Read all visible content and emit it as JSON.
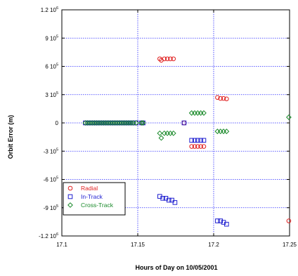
{
  "chart_data": {
    "type": "scatter",
    "xlabel": "Hours of Day on 10/05/2001",
    "ylabel": "Orbit Error (m)",
    "xlim": [
      17.1,
      17.25
    ],
    "ylim": [
      -1200000,
      1200000
    ],
    "x_ticks": [
      "17.1",
      "17.15",
      "17.2",
      "17.25"
    ],
    "y_ticks": [
      {
        "mantissa": "1.2",
        "exp": "6"
      },
      {
        "mantissa": "9",
        "exp": "5"
      },
      {
        "mantissa": "6",
        "exp": "5"
      },
      {
        "mantissa": "3",
        "exp": "5"
      },
      {
        "mantissa": "0",
        "exp": ""
      },
      {
        "mantissa": "-3",
        "exp": "5"
      },
      {
        "mantissa": "-6",
        "exp": "5"
      },
      {
        "mantissa": "-9",
        "exp": "5"
      },
      {
        "mantissa": "-1.2",
        "exp": "6"
      }
    ],
    "y_tick_values": [
      1200000,
      900000,
      600000,
      300000,
      0,
      -300000,
      -600000,
      -900000,
      -1200000
    ],
    "grid": true,
    "legend_position": "bottom-left",
    "series": [
      {
        "name": "Radial",
        "color": "#e02020",
        "marker": "circle",
        "x": [
          17.1155,
          17.117,
          17.1185,
          17.12,
          17.1215,
          17.123,
          17.1245,
          17.126,
          17.1275,
          17.129,
          17.1305,
          17.132,
          17.1335,
          17.135,
          17.1365,
          17.138,
          17.1395,
          17.141,
          17.1425,
          17.144,
          17.1455,
          17.147,
          17.149,
          17.1525,
          17.1535,
          17.1645,
          17.1655,
          17.1675,
          17.1695,
          17.1715,
          17.1735,
          17.1805,
          17.1855,
          17.1875,
          17.1895,
          17.1915,
          17.1935,
          17.2025,
          17.2045,
          17.2065,
          17.2085,
          17.2495
        ],
        "y": [
          0,
          0,
          0,
          0,
          0,
          0,
          0,
          0,
          0,
          0,
          0,
          0,
          0,
          0,
          0,
          0,
          0,
          0,
          0,
          0,
          0,
          0,
          0,
          0,
          0,
          680000,
          665000,
          680000,
          680000,
          680000,
          680000,
          0,
          -250000,
          -250000,
          -250000,
          -250000,
          -250000,
          270000,
          260000,
          260000,
          255000,
          -1040000
        ]
      },
      {
        "name": "In-Track",
        "color": "#1f1fd0",
        "marker": "square",
        "x": [
          17.1155,
          17.117,
          17.1185,
          17.12,
          17.1215,
          17.123,
          17.1245,
          17.126,
          17.1275,
          17.129,
          17.1305,
          17.132,
          17.1335,
          17.135,
          17.1365,
          17.138,
          17.1395,
          17.141,
          17.1425,
          17.144,
          17.1455,
          17.147,
          17.149,
          17.1525,
          17.1535,
          17.1645,
          17.1665,
          17.1685,
          17.1705,
          17.1725,
          17.1745,
          17.1805,
          17.1855,
          17.1875,
          17.1895,
          17.1915,
          17.1935,
          17.2025,
          17.2045,
          17.2065,
          17.2085
        ],
        "y": [
          0,
          0,
          0,
          0,
          0,
          0,
          0,
          0,
          0,
          0,
          0,
          0,
          0,
          0,
          0,
          0,
          0,
          0,
          0,
          0,
          0,
          0,
          0,
          0,
          0,
          -780000,
          -800000,
          -800000,
          -820000,
          -820000,
          -845000,
          0,
          -185000,
          -185000,
          -185000,
          -185000,
          -185000,
          -1040000,
          -1040000,
          -1055000,
          -1075000
        ]
      },
      {
        "name": "Cross-Track",
        "color": "#1a8a2a",
        "marker": "diamond",
        "x": [
          17.1155,
          17.117,
          17.1185,
          17.12,
          17.1215,
          17.123,
          17.1245,
          17.126,
          17.1275,
          17.129,
          17.1305,
          17.132,
          17.1335,
          17.135,
          17.1365,
          17.138,
          17.1395,
          17.141,
          17.1425,
          17.144,
          17.1455,
          17.147,
          17.149,
          17.1525,
          17.1535,
          17.1645,
          17.1655,
          17.1675,
          17.1695,
          17.1715,
          17.1735,
          17.1855,
          17.1875,
          17.1895,
          17.1915,
          17.1935,
          17.2025,
          17.2045,
          17.2065,
          17.2085,
          17.2495
        ],
        "y": [
          0,
          0,
          0,
          0,
          0,
          0,
          0,
          0,
          0,
          0,
          0,
          0,
          0,
          0,
          0,
          0,
          0,
          0,
          0,
          0,
          0,
          0,
          0,
          0,
          0,
          -110000,
          -160000,
          -110000,
          -110000,
          -110000,
          -110000,
          105000,
          105000,
          105000,
          105000,
          105000,
          -90000,
          -90000,
          -90000,
          -90000,
          60000
        ]
      }
    ]
  }
}
